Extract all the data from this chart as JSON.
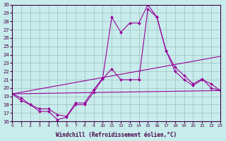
{
  "xlabel": "Windchill (Refroidissement éolien,°C)",
  "ylabel": "",
  "xlim": [
    0,
    23
  ],
  "ylim": [
    16,
    30
  ],
  "xticks": [
    0,
    1,
    2,
    3,
    4,
    5,
    6,
    7,
    8,
    9,
    10,
    11,
    12,
    13,
    14,
    15,
    16,
    17,
    18,
    19,
    20,
    21,
    22,
    23
  ],
  "yticks": [
    16,
    17,
    18,
    19,
    20,
    21,
    22,
    23,
    24,
    25,
    26,
    27,
    28,
    29,
    30
  ],
  "bg_color": "#c8ecec",
  "grid_color": "#9bbdbd",
  "line_color": "#990099",
  "line1_x": [
    0,
    1,
    2,
    3,
    4,
    5,
    6,
    7,
    8,
    9,
    10,
    11,
    12,
    13,
    14,
    15,
    16,
    17,
    18,
    19,
    20,
    21,
    22,
    23
  ],
  "line1_y": [
    19.3,
    18.8,
    18.0,
    17.2,
    17.2,
    16.2,
    16.5,
    18.0,
    18.0,
    19.5,
    21.1,
    22.3,
    21.0,
    21.0,
    21.0,
    29.5,
    28.5,
    24.5,
    22.0,
    21.0,
    20.3,
    21.0,
    20.5,
    19.7
  ],
  "line2_x": [
    0,
    1,
    2,
    3,
    4,
    5,
    6,
    7,
    8,
    9,
    10,
    11,
    12,
    13,
    14,
    15,
    16,
    17,
    18,
    19,
    20,
    21,
    22,
    23
  ],
  "line2_y": [
    19.3,
    18.5,
    18.0,
    17.5,
    17.5,
    16.8,
    16.6,
    18.2,
    18.2,
    19.8,
    21.2,
    28.5,
    26.7,
    27.8,
    27.8,
    30.0,
    28.5,
    24.5,
    22.5,
    21.5,
    20.5,
    21.1,
    20.0,
    19.7
  ],
  "line3_x": [
    0,
    23
  ],
  "line3_y": [
    19.3,
    19.7
  ],
  "line4_x": [
    0,
    23
  ],
  "line4_y": [
    19.3,
    23.8
  ]
}
